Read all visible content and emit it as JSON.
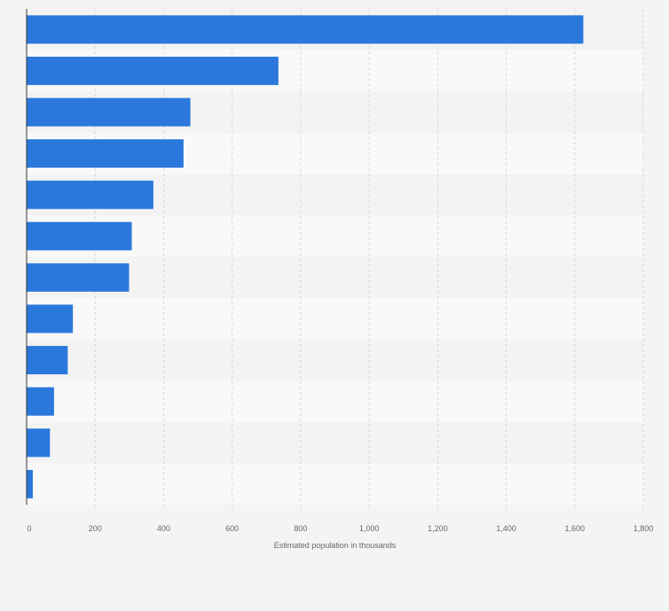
{
  "chart_data": {
    "type": "bar",
    "orientation": "horizontal",
    "categories": [
      "",
      "",
      "",
      "",
      "",
      "",
      "",
      "",
      "",
      "",
      "",
      ""
    ],
    "values": [
      1625,
      735,
      478,
      458,
      370,
      307,
      299,
      135,
      120,
      80,
      68,
      18
    ],
    "title": "",
    "xlabel": "Estimated population in thousands",
    "ylabel": "",
    "xlim": [
      0,
      1800
    ],
    "xticks": [
      0,
      200,
      400,
      600,
      800,
      1000,
      1200,
      1400,
      1600,
      1800
    ],
    "xtick_labels": [
      "0",
      "200",
      "400",
      "600",
      "800",
      "1,000",
      "1,200",
      "1,400",
      "1,600",
      "1,800"
    ],
    "grid": "vertical-dashed",
    "legend": "none",
    "colors": {
      "bar": "#2a78dc",
      "band_light": "#f9f9f9",
      "band_dark": "#f3f3f3",
      "page": "#f4f4f4",
      "grid": "#d6d6d6",
      "axis": "#333333",
      "text": "#666666"
    }
  }
}
